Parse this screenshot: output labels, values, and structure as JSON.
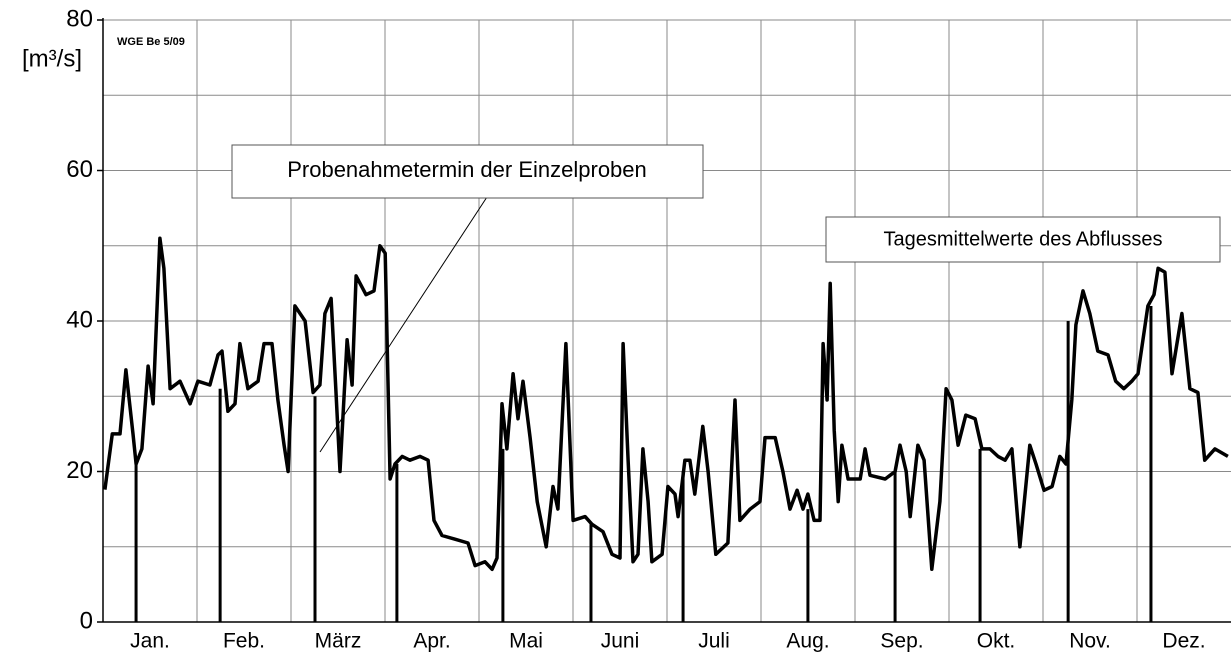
{
  "chart_data": {
    "type": "line",
    "y_axis_label": "[m³/s]",
    "stamp": "WGE Be 5/09",
    "annotations": [
      "Probenahmetermin der Einzelproben",
      "Tagesmittelwerte des Abflusses"
    ],
    "categories": [
      "Jan.",
      "Feb.",
      "März",
      "Apr.",
      "Mai",
      "Juni",
      "Juli",
      "Aug.",
      "Sep.",
      "Okt.",
      "Nov.",
      "Dez."
    ],
    "xlim": [
      0,
      365
    ],
    "ylim": [
      0,
      80
    ],
    "yticks": [
      0,
      20,
      40,
      60,
      80
    ],
    "minor_yticks": [
      10,
      30,
      50,
      70
    ],
    "grid": true,
    "color": "#000000",
    "series": [
      {
        "x": [
          0.6,
          3,
          5.5,
          7.4,
          9.7,
          10.7,
          12.6,
          14.6,
          16.2,
          18.4,
          19.7,
          21.7,
          24.9,
          28.2,
          30.7,
          34.6,
          37.2,
          38.5,
          40.4,
          42.7,
          44.3,
          46.9,
          50.2,
          52.1,
          54.7,
          56.6,
          58.6,
          59.9,
          62.1,
          65.4,
          68,
          70.2,
          71.8,
          73.8,
          75.4,
          76.7,
          79,
          80.6,
          81.9,
          85.1,
          87.7,
          89.6,
          91.3,
          92.9,
          94.5,
          96.8,
          99.3,
          102.6,
          105.2,
          107.1,
          109.7,
          113.9,
          118.1,
          120.4,
          123.6,
          125.9,
          127.5,
          129.1,
          130.7,
          132.7,
          134.3,
          135.9,
          138.2,
          140.5,
          143.4,
          145.6,
          147.2,
          149.8,
          152.1,
          156,
          158.2,
          161.8,
          164.7,
          167.3,
          168.3,
          169.9,
          171.5,
          173.1,
          174.7,
          176.4,
          177.6,
          180.9,
          182.8,
          185.1,
          186.1,
          188.3,
          189.9,
          191.5,
          194.1,
          195.8,
          198.3,
          202.2,
          204.5,
          206.1,
          209.4,
          212.6,
          214.2,
          217.5,
          220,
          222.3,
          224.6,
          226.5,
          228.1,
          230.1,
          232,
          233,
          234.3,
          235.3,
          236.6,
          237.9,
          239.1,
          241.1,
          245,
          246.6,
          248.2,
          253.1,
          256.3,
          257.9,
          259.9,
          261.2,
          263.7,
          265.7,
          268.2,
          270.8,
          272.8,
          274.7,
          276.7,
          279.2,
          282.2,
          284.4,
          287,
          289.6,
          291.9,
          294.1,
          296.7,
          299.9,
          301.9,
          304.5,
          307.1,
          309.6,
          311.6,
          313.5,
          314.8,
          317.1,
          319.3,
          321.9,
          325.2,
          327.7,
          330.3,
          332.9,
          334.9,
          338.1,
          340.1,
          341.4,
          343.6,
          345.9,
          349.1,
          351.7,
          354.3,
          356.5,
          359.8,
          364
        ],
        "values": [
          17.6,
          25,
          25,
          33.5,
          25,
          21,
          23,
          34,
          29,
          51,
          47,
          31,
          32,
          29,
          32,
          31.5,
          35.5,
          36,
          28,
          29,
          37,
          31,
          32,
          37,
          37,
          29.5,
          23.5,
          20,
          42,
          40,
          30.5,
          31.5,
          41,
          43,
          30.5,
          20,
          37.5,
          31.5,
          46,
          43.5,
          44,
          50,
          49,
          19,
          21,
          22,
          21.5,
          22,
          21.5,
          13.5,
          11.5,
          11,
          10.5,
          7.5,
          8,
          7,
          8.5,
          29,
          23,
          33,
          27,
          32,
          24.5,
          16,
          10,
          18,
          15,
          37,
          13.5,
          14,
          13,
          12,
          9,
          8.5,
          37,
          21.5,
          8,
          9,
          23,
          16,
          8,
          9,
          18,
          17,
          14,
          21.5,
          21.5,
          17,
          26,
          20,
          9,
          10.5,
          29.5,
          13.5,
          15,
          16,
          24.5,
          24.5,
          20,
          15,
          17.5,
          15,
          17,
          13.5,
          13.5,
          37,
          29.5,
          45,
          25.5,
          16,
          23.5,
          19,
          19,
          23,
          19.5,
          19,
          20,
          23.5,
          20,
          14,
          23.5,
          21.5,
          7,
          16,
          31,
          29.5,
          23.5,
          27.5,
          27,
          23,
          23,
          22,
          21.5,
          23,
          10,
          23.5,
          21,
          17.5,
          18,
          22,
          21,
          29.5,
          39.5,
          44,
          41,
          36,
          35.5,
          32,
          31,
          32,
          33,
          42,
          43.5,
          47,
          46.5,
          33,
          41,
          31,
          30.5,
          21.5,
          23,
          22
        ]
      }
    ],
    "samples": {
      "x": [
        10.7,
        37.9,
        68.6,
        95.1,
        129.4,
        157.9,
        187.7,
        228.1,
        256.3,
        283.8,
        312.3,
        339.1
      ],
      "values": [
        21,
        31,
        30,
        21,
        23,
        13,
        20,
        15,
        20,
        23,
        40,
        42
      ]
    }
  }
}
